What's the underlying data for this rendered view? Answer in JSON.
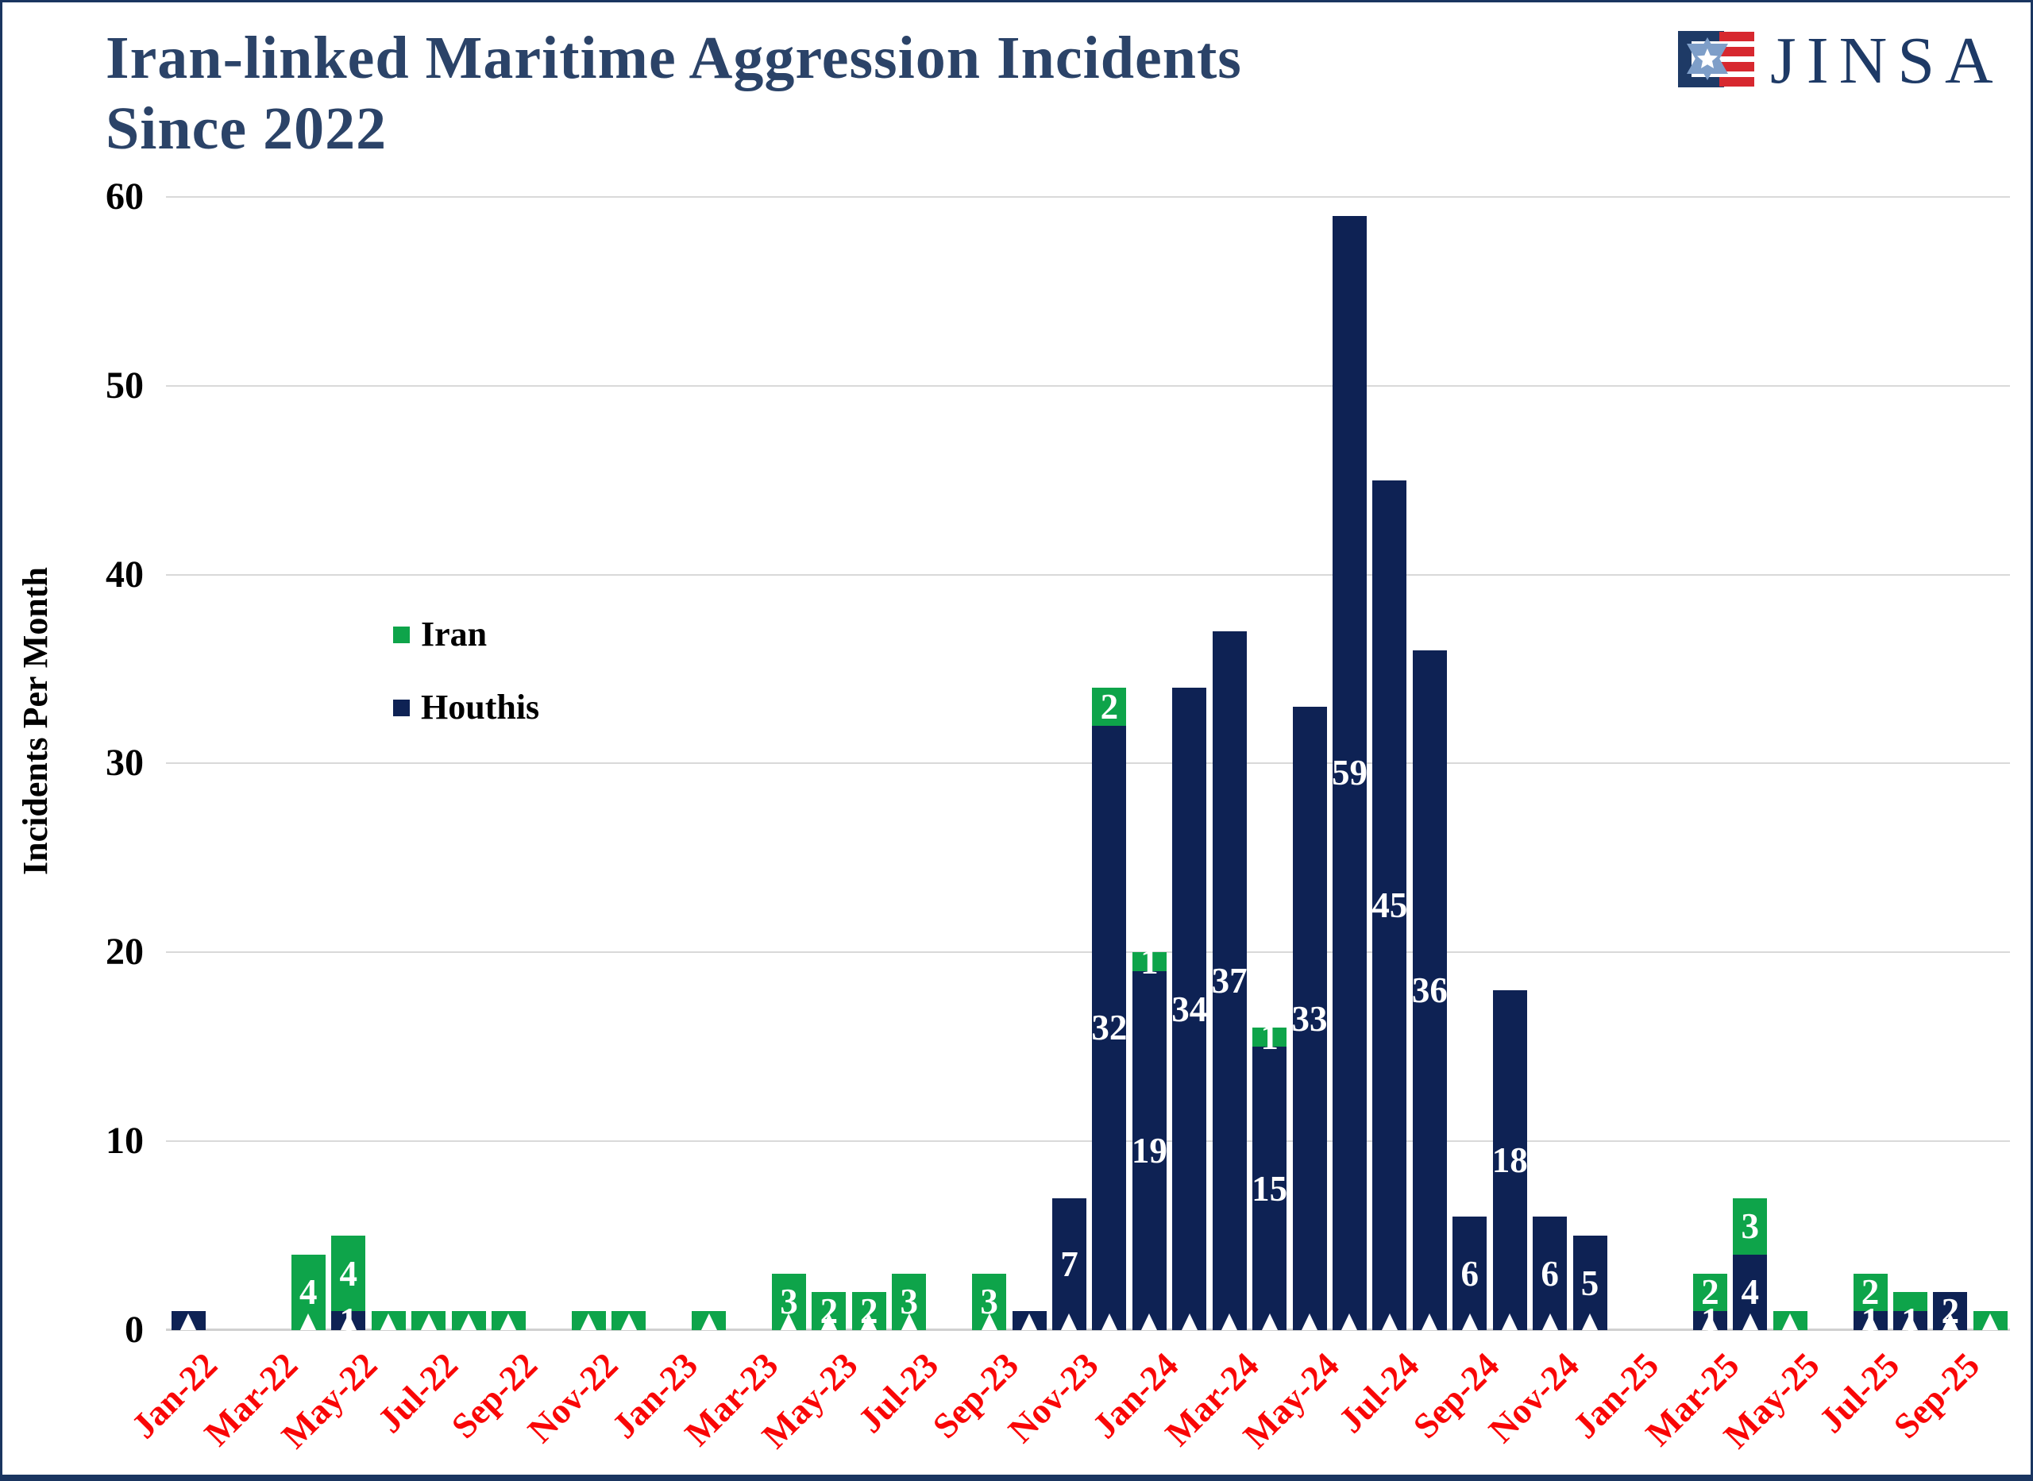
{
  "title": {
    "line1": "Iran-linked Maritime Aggression Incidents",
    "line2": "Since 2022"
  },
  "logo": {
    "text": "JINSA",
    "emblem": "jinsa-star-stripes-emblem"
  },
  "y_axis": {
    "title": "Incidents Per Month",
    "ticks": [
      0,
      10,
      20,
      30,
      40,
      50,
      60
    ]
  },
  "x_axis": {
    "tick_labels": [
      "Jan-22",
      "Mar-22",
      "May-22",
      "Jul-22",
      "Sep-22",
      "Nov-22",
      "Jan-23",
      "Mar-23",
      "May-23",
      "Jul-23",
      "Sep-23",
      "Nov-23",
      "Jan-24",
      "Mar-24",
      "May-24",
      "Jul-24",
      "Sep-24",
      "Nov-24",
      "Jan-25",
      "Mar-25",
      "May-25",
      "Jul-25",
      "Sep-25"
    ]
  },
  "legend": [
    {
      "label": "Iran",
      "color": "#0EA44A"
    },
    {
      "label": "Houthis",
      "color": "#0E2254"
    }
  ],
  "colors": {
    "iran_green": "#0EA44A",
    "houthis_navy": "#0E2254",
    "x_label_red": "#F90606",
    "title_navy": "#2B4368",
    "gridline": "#D9D9D9",
    "frame": "#1A3560",
    "bar_label_white": "#FFFFFF"
  },
  "chart_data": {
    "type": "bar",
    "stacked": true,
    "title": "Iran-linked Maritime Aggression Incidents Since 2022",
    "ylabel": "Incidents Per Month",
    "ylim": [
      0,
      60
    ],
    "grid": true,
    "legend_position": "inside-upper-left",
    "x_tick_step": 2,
    "categories": [
      "Jan-22",
      "Feb-22",
      "Mar-22",
      "Apr-22",
      "May-22",
      "Jun-22",
      "Jul-22",
      "Aug-22",
      "Sep-22",
      "Oct-22",
      "Nov-22",
      "Dec-22",
      "Jan-23",
      "Feb-23",
      "Mar-23",
      "Apr-23",
      "May-23",
      "Jun-23",
      "Jul-23",
      "Aug-23",
      "Sep-23",
      "Oct-23",
      "Nov-23",
      "Dec-23",
      "Jan-24",
      "Feb-24",
      "Mar-24",
      "Apr-24",
      "May-24",
      "Jun-24",
      "Jul-24",
      "Aug-24",
      "Sep-24",
      "Oct-24",
      "Nov-24",
      "Dec-24",
      "Jan-25",
      "Feb-25",
      "Mar-25",
      "Apr-25",
      "May-25",
      "Jun-25",
      "Jul-25",
      "Aug-25",
      "Sep-25",
      "Oct-25"
    ],
    "series": [
      {
        "name": "Iran",
        "color": "#0EA44A",
        "values": [
          0,
          0,
          0,
          4,
          4,
          1,
          1,
          1,
          1,
          0,
          1,
          1,
          0,
          1,
          0,
          3,
          2,
          2,
          3,
          0,
          3,
          0,
          0,
          2,
          1,
          0,
          0,
          1,
          0,
          0,
          0,
          0,
          0,
          0,
          0,
          0,
          0,
          0,
          2,
          3,
          1,
          0,
          2,
          1,
          0,
          1
        ],
        "bar_labels": [
          "",
          "",
          "",
          "4",
          "4",
          "",
          "",
          "",
          "",
          "",
          "",
          "",
          "",
          "",
          "",
          "3",
          "2",
          "2",
          "3",
          "",
          "3",
          "",
          "",
          "2",
          "1",
          "",
          "",
          "1",
          "",
          "",
          "",
          "",
          "",
          "",
          "",
          "",
          "",
          "",
          "2",
          "3",
          "",
          "",
          "2",
          "",
          "",
          ""
        ]
      },
      {
        "name": "Houthis",
        "color": "#0E2254",
        "values": [
          1,
          0,
          0,
          0,
          1,
          0,
          0,
          0,
          0,
          0,
          0,
          0,
          0,
          0,
          0,
          0,
          0,
          0,
          0,
          0,
          0,
          1,
          7,
          32,
          19,
          34,
          37,
          15,
          33,
          59,
          45,
          36,
          6,
          18,
          6,
          5,
          0,
          0,
          1,
          4,
          0,
          0,
          1,
          1,
          2,
          0
        ],
        "bar_labels": [
          "",
          "",
          "",
          "",
          "1",
          "",
          "",
          "",
          "",
          "",
          "",
          "",
          "",
          "",
          "",
          "",
          "",
          "",
          "",
          "",
          "",
          "",
          "7",
          "32",
          "19",
          "34",
          "37",
          "15",
          "33",
          "59",
          "45",
          "36",
          "6",
          "18",
          "6",
          "5",
          "",
          "",
          "1",
          "4",
          "",
          "",
          "1",
          "1",
          "2",
          ""
        ]
      }
    ]
  }
}
